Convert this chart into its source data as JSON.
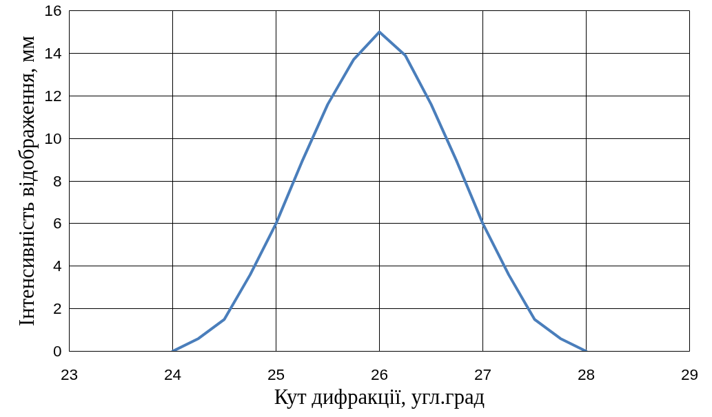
{
  "chart_data": {
    "type": "line",
    "xlabel": "Кут дифракції, угл.град",
    "ylabel": "Інтенсивність відображення, мм",
    "x": [
      24,
      24.25,
      24.5,
      24.75,
      25,
      25.25,
      25.5,
      25.75,
      26,
      26.25,
      26.5,
      26.75,
      27,
      27.25,
      27.5,
      27.75,
      28
    ],
    "series": [
      {
        "color": "#4a7ebb",
        "values": [
          0,
          0.6,
          1.5,
          3.6,
          6,
          8.9,
          11.6,
          13.7,
          15,
          13.9,
          11.6,
          8.9,
          6,
          3.6,
          1.5,
          0.6,
          0
        ]
      }
    ],
    "xlim": [
      23,
      29
    ],
    "ylim": [
      0,
      16
    ],
    "xticks": [
      23,
      24,
      25,
      26,
      27,
      28,
      29
    ],
    "yticks": [
      0,
      2,
      4,
      6,
      8,
      10,
      12,
      14,
      16
    ],
    "grid": true,
    "marker": "none",
    "line_style": "solid"
  }
}
